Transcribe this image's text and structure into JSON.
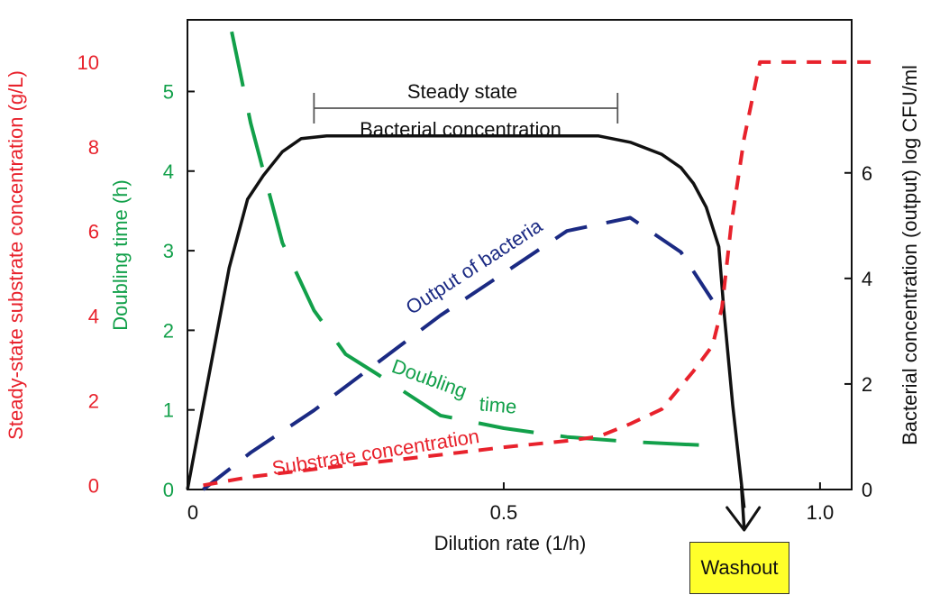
{
  "chart_data": {
    "type": "line",
    "x_axis": {
      "label": "Dilution rate (1/h)",
      "range": [
        0,
        1.05
      ],
      "ticks": [
        {
          "value": 0,
          "label": "0"
        },
        {
          "value": 0.5,
          "label": "0.5"
        },
        {
          "value": 1.0,
          "label": "1.0"
        }
      ]
    },
    "y_axis_substrate": {
      "label": "Steady-state substrate concentration (g/L)",
      "range": [
        -0.1,
        11.0
      ],
      "ticks": [
        {
          "value": 0,
          "label": "0"
        },
        {
          "value": 2,
          "label": "2"
        },
        {
          "value": 4,
          "label": "4"
        },
        {
          "value": 6,
          "label": "6"
        },
        {
          "value": 8,
          "label": "8"
        },
        {
          "value": 10,
          "label": "10"
        }
      ],
      "color": "#e8222c"
    },
    "y_axis_doubling": {
      "label": "Doubling time (h)",
      "range": [
        0,
        5.9
      ],
      "ticks": [
        {
          "value": 0,
          "label": "0"
        },
        {
          "value": 1,
          "label": "1"
        },
        {
          "value": 2,
          "label": "2"
        },
        {
          "value": 3,
          "label": "3"
        },
        {
          "value": 4,
          "label": "4"
        },
        {
          "value": 5,
          "label": "5"
        }
      ],
      "color": "#12a04a"
    },
    "y_axis_bacterial": {
      "label": "Bacterial concentration (output) log CFU/ml",
      "range": [
        0,
        8.9
      ],
      "ticks": [
        {
          "value": 0,
          "label": "0"
        },
        {
          "value": 2,
          "label": "2"
        },
        {
          "value": 4,
          "label": "4"
        },
        {
          "value": 6,
          "label": "6"
        }
      ],
      "color": "#111111"
    },
    "series": [
      {
        "name": "Bacterial concentration",
        "axis": "bacterial",
        "style": "solid",
        "color": "#111111",
        "x": [
          0,
          0.022,
          0.044,
          0.066,
          0.095,
          0.12,
          0.15,
          0.18,
          0.22,
          0.3,
          0.4,
          0.5,
          0.6,
          0.65,
          0.7,
          0.75,
          0.78,
          0.8,
          0.82,
          0.84,
          0.848,
          0.862,
          0.88
        ],
        "y": [
          0,
          1.4,
          2.8,
          4.2,
          5.5,
          5.95,
          6.4,
          6.65,
          6.7,
          6.7,
          6.7,
          6.7,
          6.7,
          6.7,
          6.58,
          6.35,
          6.1,
          5.8,
          5.35,
          4.6,
          3.4,
          1.6,
          -0.35
        ]
      },
      {
        "name": "Output of bacteria",
        "axis": "bacterial",
        "style": "dashed",
        "color": "#1b2a83",
        "x": [
          0.025,
          0.1,
          0.2,
          0.3,
          0.4,
          0.5,
          0.6,
          0.7,
          0.78,
          0.84
        ],
        "y": [
          0,
          0.7,
          1.5,
          2.4,
          3.3,
          4.1,
          4.9,
          5.15,
          4.5,
          3.4
        ]
      },
      {
        "name": "Doubling time",
        "axis": "doubling",
        "style": "dashed",
        "color": "#12a04a",
        "x": [
          0.07,
          0.1,
          0.15,
          0.2,
          0.25,
          0.3,
          0.4,
          0.5,
          0.6,
          0.7,
          0.83
        ],
        "y": [
          5.75,
          4.6,
          3.1,
          2.25,
          1.7,
          1.45,
          0.93,
          0.77,
          0.66,
          0.6,
          0.55
        ]
      },
      {
        "name": "Substrate concentration",
        "axis": "substrate",
        "style": "dashed",
        "color": "#e8222c",
        "x": [
          0.025,
          0.1,
          0.2,
          0.3,
          0.4,
          0.5,
          0.6,
          0.65,
          0.7,
          0.75,
          0.8,
          0.83,
          0.845,
          0.86,
          0.88,
          0.905,
          1.0,
          1.08
        ],
        "y": [
          0,
          0.2,
          0.38,
          0.55,
          0.72,
          0.9,
          1.05,
          1.15,
          1.45,
          1.8,
          2.7,
          3.3,
          4.2,
          6.2,
          8.2,
          10.0,
          10.0,
          10.0
        ]
      }
    ],
    "annotations": {
      "steady_state": "Steady state",
      "bacterial_concentration": "Bacterial concentration",
      "output_of_bacteria": "Output of bacteria",
      "doubling_time_part1": "Doubling",
      "doubling_time_part2": "time",
      "substrate_concentration": "Substrate concentration",
      "washout": "Washout"
    },
    "steady_state_range": [
      0.2,
      0.68
    ],
    "washout_x": 0.88,
    "grid": false,
    "legend": "none (inline labels)"
  }
}
